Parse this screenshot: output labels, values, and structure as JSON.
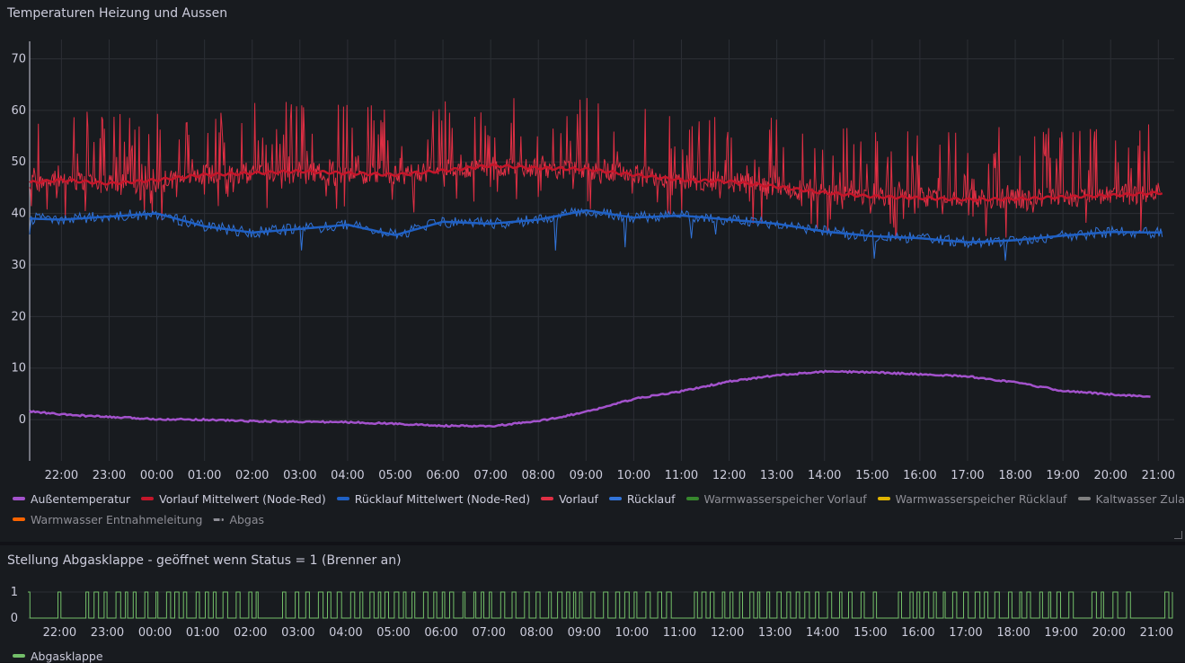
{
  "panel1": {
    "title": "Temperaturen Heizung und Aussen",
    "y_ticks": [
      "70",
      "60",
      "50",
      "40",
      "30",
      "20",
      "10",
      "0"
    ],
    "x_ticks": [
      "22:00",
      "23:00",
      "00:00",
      "01:00",
      "02:00",
      "03:00",
      "04:00",
      "05:00",
      "06:00",
      "07:00",
      "08:00",
      "09:00",
      "10:00",
      "11:00",
      "12:00",
      "13:00",
      "14:00",
      "15:00",
      "16:00",
      "17:00",
      "18:00",
      "19:00",
      "20:00",
      "21:00"
    ],
    "legend": [
      {
        "label": "Außentemperatur",
        "color": "#a352cc",
        "dim": false,
        "dash": false
      },
      {
        "label": "Vorlauf Mittelwert (Node-Red)",
        "color": "#c4162a",
        "dim": false,
        "dash": false
      },
      {
        "label": "Rücklauf Mittelwert (Node-Red)",
        "color": "#1f60c4",
        "dim": false,
        "dash": false
      },
      {
        "label": "Vorlauf",
        "color": "#e02f44",
        "dim": false,
        "dash": false
      },
      {
        "label": "Rücklauf",
        "color": "#3274d9",
        "dim": false,
        "dash": false
      },
      {
        "label": "Warmwasserspeicher Vorlauf",
        "color": "#37872d",
        "dim": true,
        "dash": false
      },
      {
        "label": "Warmwasserspeicher Rücklauf",
        "color": "#e0b400",
        "dim": true,
        "dash": false
      },
      {
        "label": "Kaltwasser Zulauf",
        "color": "#808080",
        "dim": true,
        "dash": false
      },
      {
        "label": "Warmwasser Entnahmeleitung",
        "color": "#fa6400",
        "dim": true,
        "dash": false
      },
      {
        "label": "Abgas",
        "color": "#808080",
        "dim": true,
        "dash": true
      }
    ]
  },
  "panel2": {
    "title": "Stellung Abgasklappe - geöffnet wenn Status = 1 (Brenner an)",
    "y_ticks": [
      "1",
      "0"
    ],
    "x_ticks": [
      "22:00",
      "23:00",
      "00:00",
      "01:00",
      "02:00",
      "03:00",
      "04:00",
      "05:00",
      "06:00",
      "07:00",
      "08:00",
      "09:00",
      "10:00",
      "11:00",
      "12:00",
      "13:00",
      "14:00",
      "15:00",
      "16:00",
      "17:00",
      "18:00",
      "19:00",
      "20:00",
      "21:00"
    ],
    "legend": [
      {
        "label": "Abgasklappe",
        "color": "#73bf69",
        "dim": false,
        "dash": false
      }
    ]
  },
  "chart_data": [
    {
      "type": "line",
      "title": "Temperaturen Heizung und Aussen",
      "ylim": [
        -8,
        72
      ],
      "x_range": [
        "21:20",
        "21:20"
      ],
      "grid": true,
      "legend_position": "bottom",
      "series": [
        {
          "name": "Außentemperatur",
          "color": "#a352cc",
          "x": [
            "21:20",
            "22:00",
            "23:00",
            "00:00",
            "01:00",
            "02:00",
            "03:00",
            "04:00",
            "05:00",
            "06:00",
            "07:00",
            "08:00",
            "09:00",
            "10:00",
            "11:00",
            "12:00",
            "13:00",
            "14:00",
            "15:00",
            "16:00",
            "17:00",
            "18:00",
            "19:00",
            "20:00",
            "21:00"
          ],
          "y": [
            1.6,
            1.0,
            0.5,
            0.1,
            0.0,
            -0.3,
            -0.4,
            -0.5,
            -0.8,
            -1.2,
            -1.3,
            -0.3,
            1.5,
            4.0,
            5.5,
            7.4,
            8.6,
            9.3,
            9.2,
            8.8,
            8.4,
            7.2,
            5.6,
            4.9,
            4.4
          ]
        },
        {
          "name": "Vorlauf Mittelwert (Node-Red)",
          "color": "#c4162a",
          "x": [
            "21:20",
            "22:00",
            "23:00",
            "00:00",
            "01:00",
            "02:00",
            "03:00",
            "04:00",
            "05:00",
            "06:00",
            "07:00",
            "08:00",
            "09:00",
            "10:00",
            "11:00",
            "12:00",
            "13:00",
            "14:00",
            "15:00",
            "16:00",
            "17:00",
            "18:00",
            "19:00",
            "20:00",
            "21:00"
          ],
          "y": [
            46,
            46.5,
            45.8,
            46.5,
            47.5,
            47.8,
            48.2,
            47.8,
            47.5,
            48.3,
            49.3,
            48.8,
            48.6,
            47.5,
            46.5,
            46.2,
            45.2,
            44,
            43.3,
            43,
            42.7,
            42.8,
            43.2,
            43.5,
            44
          ]
        },
        {
          "name": "Rücklauf Mittelwert (Node-Red)",
          "color": "#1f60c4",
          "x": [
            "21:20",
            "22:00",
            "23:00",
            "00:00",
            "01:00",
            "02:00",
            "03:00",
            "04:00",
            "05:00",
            "06:00",
            "07:00",
            "08:00",
            "09:00",
            "10:00",
            "11:00",
            "12:00",
            "13:00",
            "14:00",
            "15:00",
            "16:00",
            "17:00",
            "18:00",
            "19:00",
            "20:00",
            "21:00"
          ],
          "y": [
            39,
            38.8,
            39.4,
            40,
            37.5,
            36.3,
            37,
            37.8,
            35.8,
            38.4,
            38,
            38.8,
            40.6,
            39.2,
            39.6,
            38.8,
            38,
            36.5,
            35.6,
            35.2,
            34.4,
            34.8,
            35.7,
            36.4,
            36.3
          ]
        }
      ]
    },
    {
      "type": "line",
      "title": "Stellung Abgasklappe - geöffnet wenn Status = 1 (Brenner an)",
      "ylim": [
        0,
        1
      ],
      "series": [
        {
          "name": "Abgasklappe",
          "color": "#73bf69",
          "values": "binary 0/1 switching"
        }
      ]
    }
  ]
}
